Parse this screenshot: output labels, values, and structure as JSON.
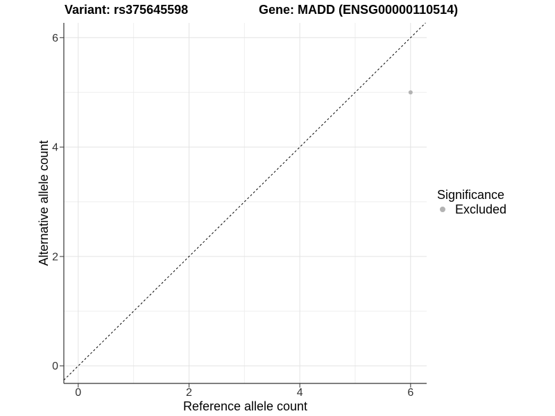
{
  "chart_data": {
    "type": "scatter",
    "title_variant": "Variant: rs375645598",
    "title_gene": "Gene: MADD (ENSG00000110514)",
    "xlabel": "Reference allele count",
    "ylabel": "Alternative allele count",
    "xlim": [
      -0.26,
      6.29
    ],
    "ylim": [
      -0.32,
      6.27
    ],
    "x_major_ticks": [
      0,
      2,
      4,
      6
    ],
    "x_minor_ticks": [
      1,
      3,
      5
    ],
    "y_major_ticks": [
      0,
      2,
      4,
      6
    ],
    "y_minor_ticks": [
      1,
      3,
      5
    ],
    "grid": {
      "major_color": "#e3e3e3",
      "minor_color": "#eeeeee",
      "visible": true
    },
    "axis_color": "#333333",
    "tick_label_color": "#333333",
    "tick_label_size": 16,
    "series": [
      {
        "name": "Excluded",
        "color": "#b3b3b3",
        "marker": "circle",
        "point_radius": 3,
        "points": [
          {
            "x": 6,
            "y": 5
          }
        ]
      }
    ],
    "reference_line": {
      "equation": "y = x",
      "style": "dashed",
      "color": "#000000"
    },
    "legend": {
      "title": "Significance",
      "position": "right",
      "items": [
        {
          "label": "Excluded",
          "color": "#b3b3b3"
        }
      ]
    }
  }
}
